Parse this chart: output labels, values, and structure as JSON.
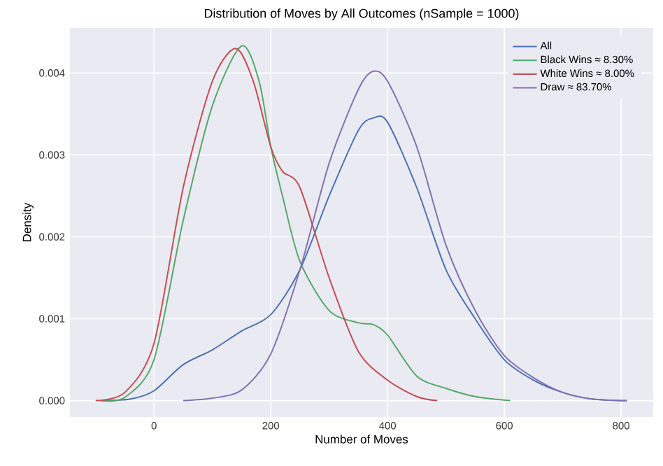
{
  "chart_data": {
    "type": "line",
    "title": "Distribution of Moves by All Outcomes (nSample = 1000)",
    "xlabel": "Number of Moves",
    "ylabel": "Density",
    "xlim": [
      -144,
      855
    ],
    "ylim": [
      -0.0002,
      0.00455
    ],
    "xticks": [
      0,
      200,
      400,
      600,
      800
    ],
    "yticks": [
      {
        "value": 0,
        "label": "0.000"
      },
      {
        "value": 0.001,
        "label": "0.001"
      },
      {
        "value": 0.002,
        "label": "0.002"
      },
      {
        "value": 0.003,
        "label": "0.003"
      },
      {
        "value": 0.004,
        "label": "0.004"
      }
    ],
    "grid": true,
    "legend": "top right",
    "marker": "none",
    "line_style": "solid",
    "series": [
      {
        "name": "All",
        "color": "#4c72b0",
        "x": [
          -92,
          -40,
          0,
          50,
          100,
          150,
          200,
          250,
          300,
          350,
          375,
          400,
          450,
          500,
          550,
          600,
          650,
          700,
          750,
          810
        ],
        "values": [
          0,
          2e-05,
          0.00012,
          0.00044,
          0.00062,
          0.00085,
          0.00105,
          0.0016,
          0.0025,
          0.0033,
          0.00345,
          0.0034,
          0.0026,
          0.0016,
          0.001,
          0.0005,
          0.00025,
          0.0001,
          2e-05,
          0
        ]
      },
      {
        "name": "Black Wins ≈ 8.30%",
        "color": "#55a868",
        "x": [
          -90,
          -50,
          0,
          50,
          100,
          150,
          180,
          200,
          220,
          250,
          300,
          350,
          375,
          400,
          450,
          500,
          550,
          610
        ],
        "values": [
          0,
          4e-05,
          0.0005,
          0.0022,
          0.0036,
          0.00433,
          0.0039,
          0.0031,
          0.0025,
          0.0017,
          0.0011,
          0.00095,
          0.00093,
          0.0008,
          0.0003,
          0.00015,
          5e-05,
          0
        ]
      },
      {
        "name": "White Wins ≈ 8.00%",
        "color": "#c44e52",
        "x": [
          -100,
          -50,
          0,
          50,
          100,
          140,
          170,
          200,
          220,
          250,
          300,
          350,
          400,
          450,
          485
        ],
        "values": [
          0,
          0.0001,
          0.0007,
          0.0026,
          0.0039,
          0.0043,
          0.0039,
          0.0031,
          0.0028,
          0.0026,
          0.0015,
          0.0006,
          0.00025,
          5e-05,
          0
        ]
      },
      {
        "name": "Draw ≈ 83.70%",
        "color": "#8172b2",
        "x": [
          50,
          100,
          150,
          200,
          250,
          300,
          350,
          375,
          400,
          450,
          500,
          550,
          600,
          650,
          700,
          750,
          810
        ],
        "values": [
          0,
          3e-05,
          0.00013,
          0.00057,
          0.0016,
          0.0029,
          0.0038,
          0.00402,
          0.0039,
          0.0031,
          0.0019,
          0.0011,
          0.00055,
          0.00028,
          0.0001,
          2e-05,
          0
        ]
      }
    ]
  }
}
